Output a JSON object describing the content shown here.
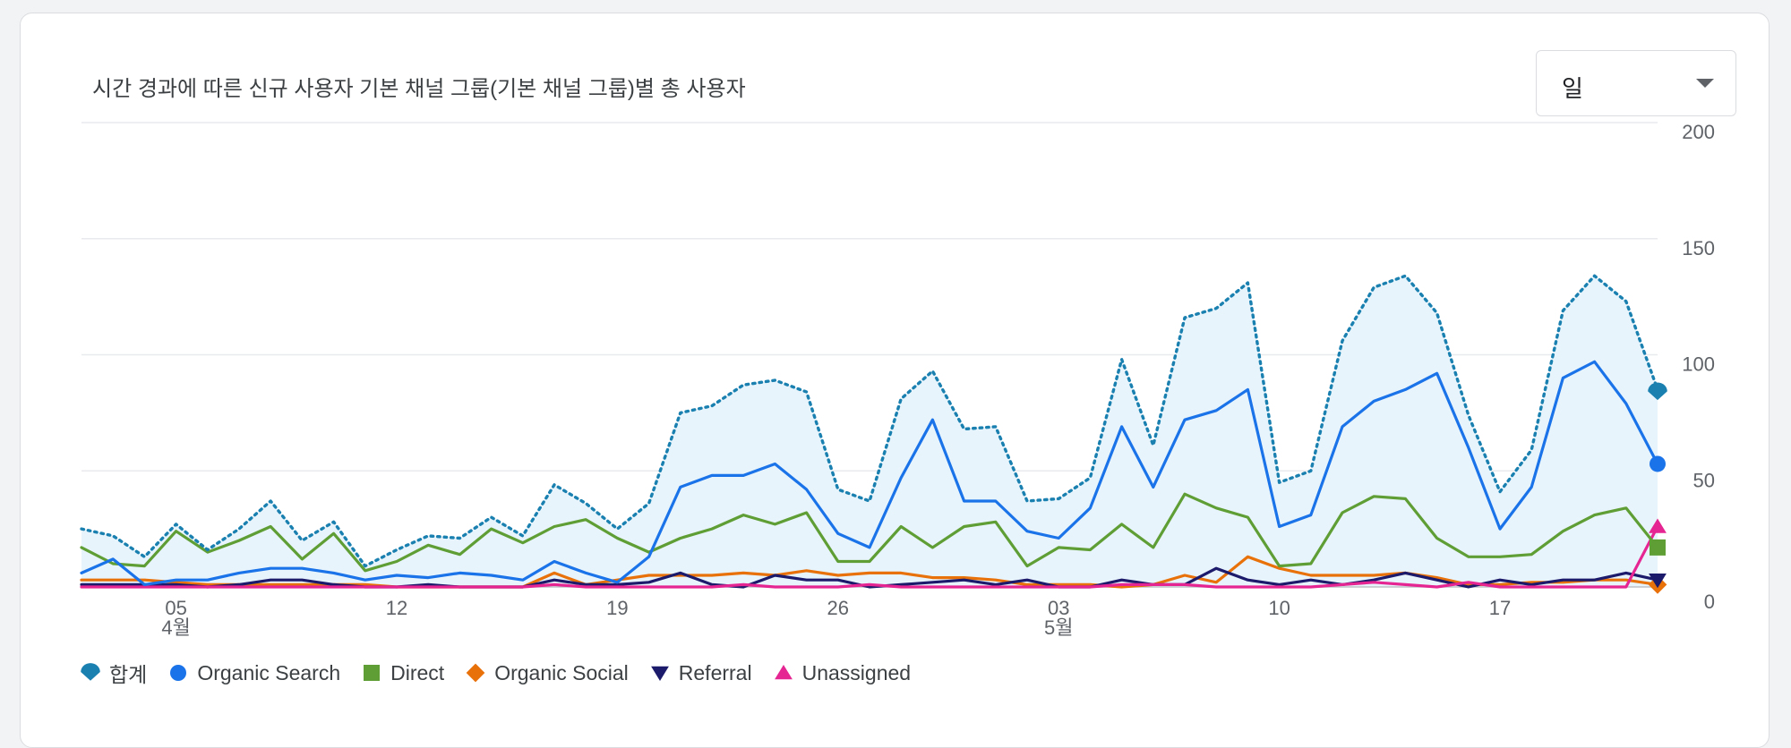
{
  "card": {
    "title": "시간 경과에 따른 신규 사용자 기본 채널 그룹(기본 채널 그룹)별 총 사용자"
  },
  "period_select": {
    "value": "일"
  },
  "chart_data": {
    "type": "line",
    "title": "시간 경과에 따른 신규 사용자 기본 채널 그룹(기본 채널 그룹)별 총 사용자",
    "xlabel": "",
    "ylabel": "",
    "ylim": [
      0,
      200
    ],
    "yticks": [
      0,
      50,
      100,
      150,
      200
    ],
    "y_axis_side": "right",
    "grid": true,
    "legend_position": "bottom-left",
    "x_tick_labels": [
      {
        "index": 3,
        "label": "05",
        "sublabel": "4월"
      },
      {
        "index": 10,
        "label": "12"
      },
      {
        "index": 17,
        "label": "19"
      },
      {
        "index": 24,
        "label": "26"
      },
      {
        "index": 31,
        "label": "03",
        "sublabel": "5월"
      },
      {
        "index": 38,
        "label": "10"
      },
      {
        "index": 45,
        "label": "17"
      }
    ],
    "x": [
      "04-02",
      "04-03",
      "04-04",
      "04-05",
      "04-06",
      "04-07",
      "04-08",
      "04-09",
      "04-10",
      "04-11",
      "04-12",
      "04-13",
      "04-14",
      "04-15",
      "04-16",
      "04-17",
      "04-18",
      "04-19",
      "04-20",
      "04-21",
      "04-22",
      "04-23",
      "04-24",
      "04-25",
      "04-26",
      "04-27",
      "04-28",
      "04-29",
      "04-30",
      "05-01",
      "05-02",
      "05-03",
      "05-04",
      "05-05",
      "05-06",
      "05-07",
      "05-08",
      "05-09",
      "05-10",
      "05-11",
      "05-12",
      "05-13",
      "05-14",
      "05-15",
      "05-16",
      "05-17",
      "05-18",
      "05-19",
      "05-20",
      "05-21",
      "05-22"
    ],
    "series": [
      {
        "name": "합계",
        "color": "#1a80b0",
        "style": "dotted",
        "area_fill": "#e8f4fc",
        "marker": "drop",
        "values": [
          25,
          22,
          13,
          27,
          16,
          25,
          37,
          20,
          28,
          9,
          16,
          22,
          21,
          30,
          22,
          44,
          36,
          25,
          36,
          75,
          78,
          87,
          89,
          84,
          42,
          37,
          81,
          93,
          68,
          69,
          37,
          38,
          47,
          98,
          61,
          116,
          120,
          131,
          45,
          50,
          106,
          129,
          134,
          118,
          74,
          41,
          59,
          119,
          134,
          123,
          85
        ]
      },
      {
        "name": "Organic Search",
        "color": "#1a73e8",
        "style": "solid",
        "marker": "circle",
        "values": [
          6,
          12,
          1,
          3,
          3,
          6,
          8,
          8,
          6,
          3,
          5,
          4,
          6,
          5,
          3,
          11,
          6,
          2,
          13,
          43,
          48,
          48,
          53,
          42,
          23,
          17,
          47,
          72,
          37,
          37,
          24,
          21,
          34,
          69,
          43,
          72,
          76,
          85,
          26,
          31,
          69,
          80,
          85,
          92,
          60,
          25,
          43,
          90,
          97,
          79,
          53
        ]
      },
      {
        "name": "Direct",
        "color": "#5f9e35",
        "style": "solid",
        "marker": "square",
        "values": [
          17,
          10,
          9,
          24,
          15,
          20,
          26,
          12,
          23,
          7,
          11,
          18,
          14,
          25,
          19,
          26,
          29,
          21,
          15,
          21,
          25,
          31,
          27,
          32,
          11,
          11,
          26,
          17,
          26,
          28,
          9,
          17,
          16,
          27,
          17,
          40,
          34,
          30,
          9,
          10,
          32,
          39,
          38,
          21,
          13,
          13,
          14,
          24,
          31,
          34,
          17
        ]
      },
      {
        "name": "Organic Social",
        "color": "#e8710a",
        "style": "solid",
        "marker": "diamond",
        "values": [
          3,
          3,
          3,
          2,
          1,
          1,
          1,
          1,
          1,
          1,
          0,
          0,
          0,
          0,
          0,
          6,
          1,
          3,
          5,
          5,
          5,
          6,
          5,
          7,
          5,
          6,
          6,
          4,
          4,
          3,
          1,
          1,
          1,
          0,
          1,
          5,
          2,
          13,
          8,
          5,
          5,
          5,
          6,
          4,
          1,
          1,
          2,
          2,
          3,
          3,
          1
        ]
      },
      {
        "name": "Referral",
        "color": "#1c1a6b",
        "style": "solid",
        "marker": "triangle-down",
        "values": [
          1,
          1,
          1,
          1,
          0,
          1,
          3,
          3,
          1,
          0,
          0,
          1,
          0,
          0,
          0,
          3,
          1,
          1,
          2,
          6,
          1,
          0,
          5,
          3,
          3,
          0,
          1,
          2,
          3,
          1,
          3,
          0,
          0,
          3,
          1,
          1,
          8,
          3,
          1,
          3,
          1,
          3,
          6,
          3,
          0,
          3,
          1,
          3,
          3,
          6,
          3
        ]
      },
      {
        "name": "Unassigned",
        "color": "#e52592",
        "style": "solid",
        "marker": "triangle-up",
        "values": [
          0,
          0,
          0,
          0,
          0,
          0,
          0,
          0,
          0,
          0,
          0,
          0,
          0,
          0,
          0,
          1,
          0,
          0,
          0,
          0,
          0,
          1,
          0,
          0,
          0,
          1,
          0,
          0,
          0,
          0,
          0,
          0,
          0,
          1,
          1,
          1,
          0,
          0,
          0,
          0,
          1,
          2,
          1,
          0,
          2,
          0,
          0,
          0,
          0,
          0,
          26
        ]
      }
    ]
  }
}
